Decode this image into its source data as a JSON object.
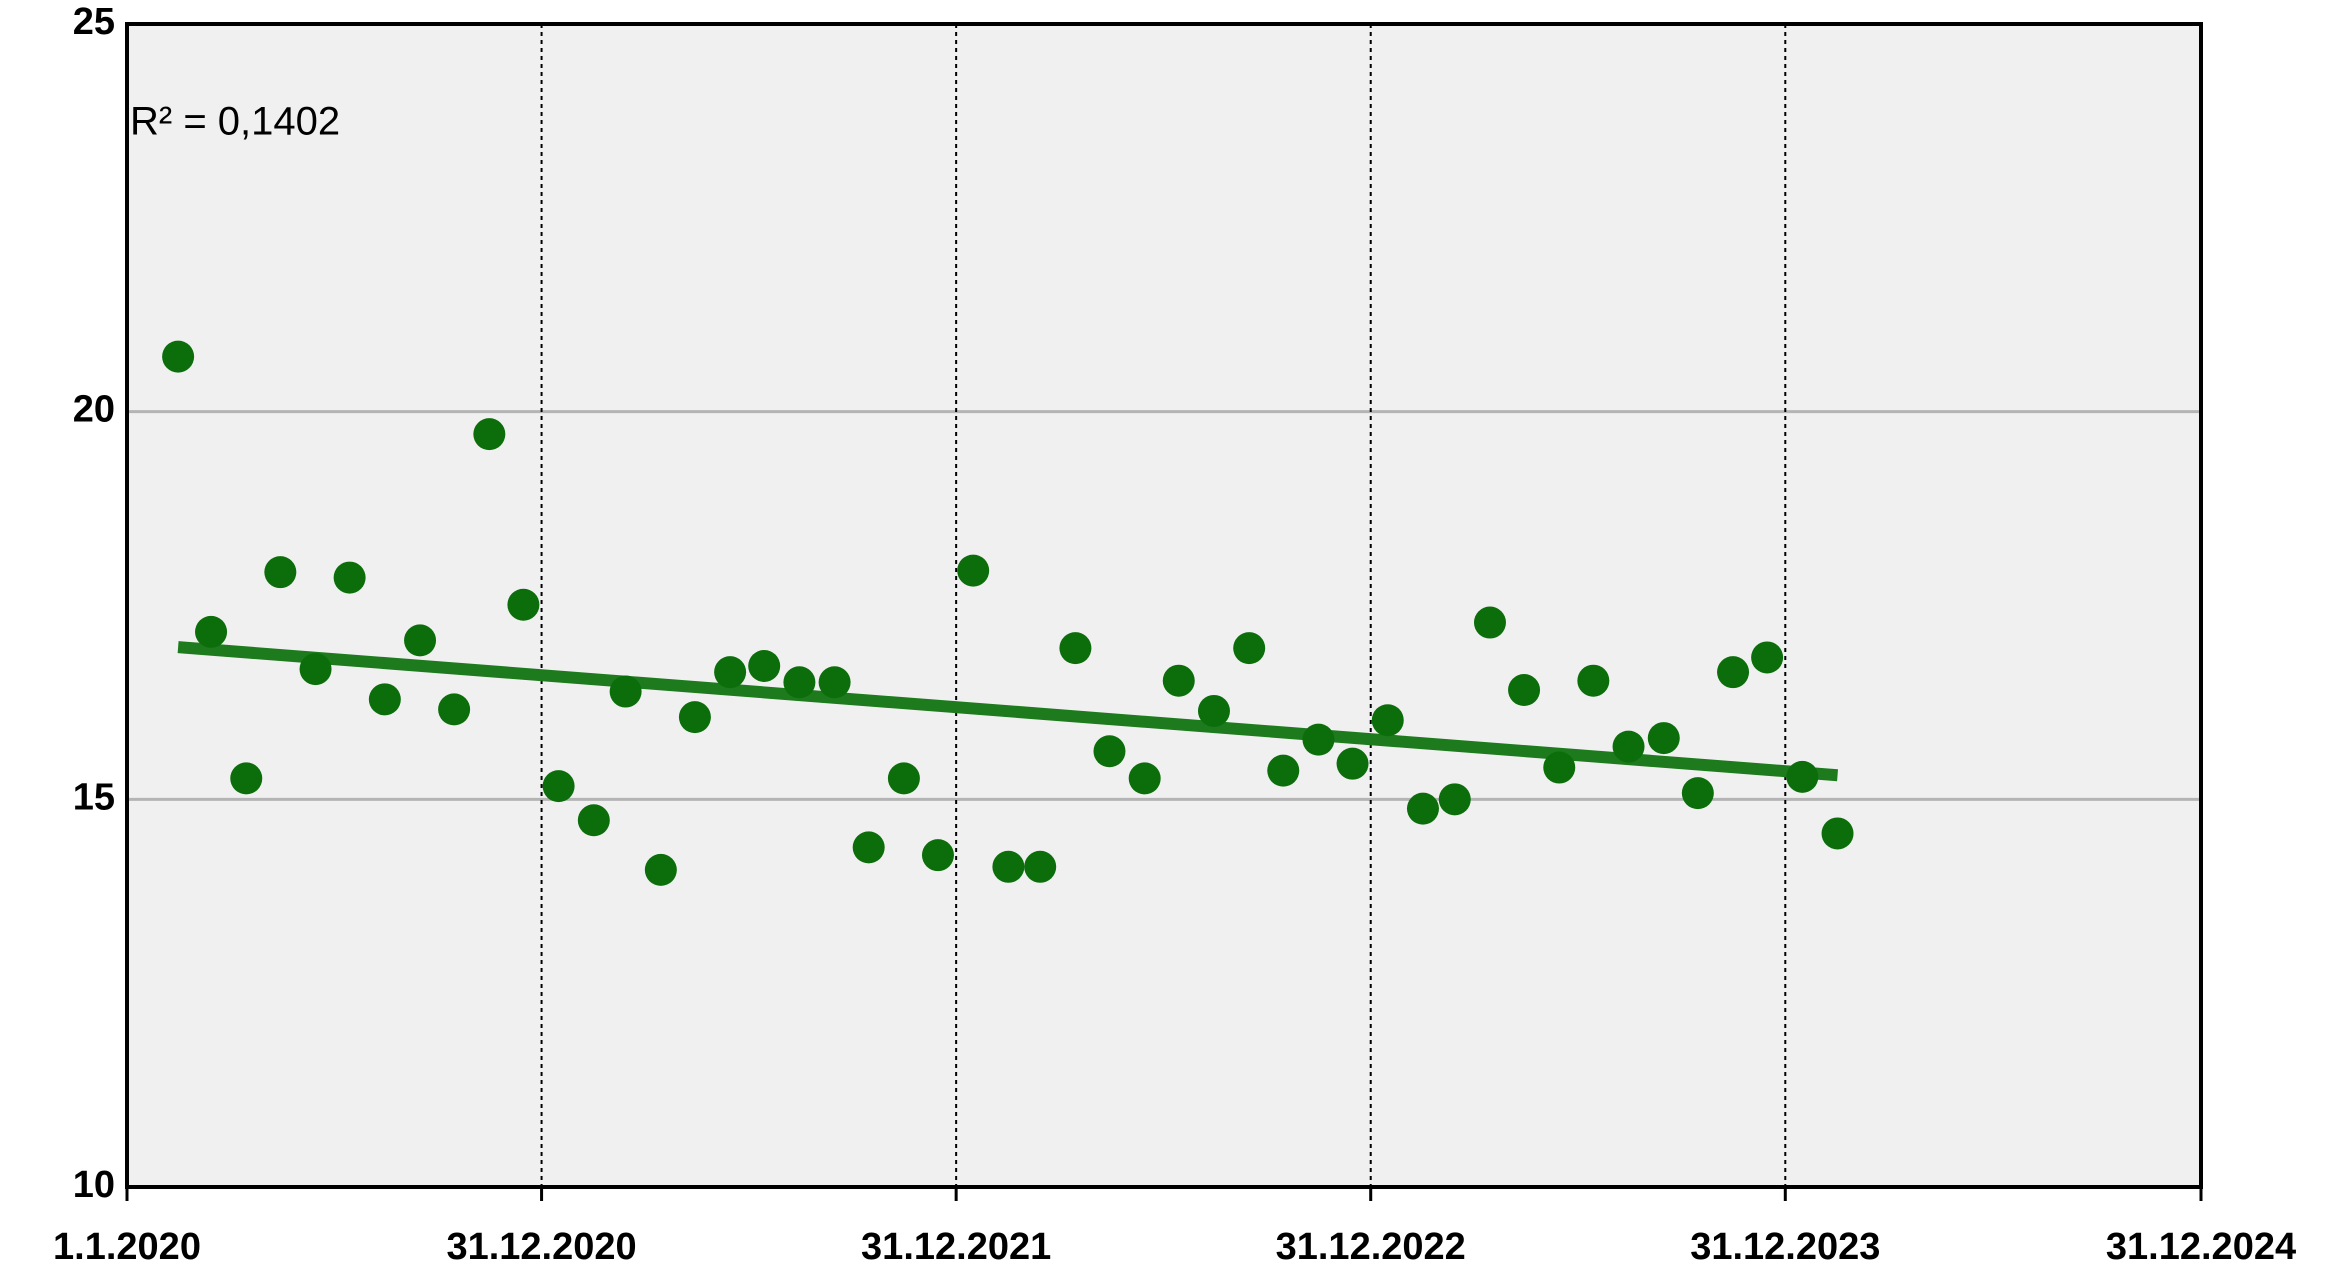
{
  "chart_data": {
    "type": "scatter",
    "annotation": "R² = 0,1402",
    "x": [
      "15.2.2020",
      "15.3.2020",
      "15.4.2020",
      "15.5.2020",
      "15.6.2020",
      "15.7.2020",
      "15.8.2020",
      "15.9.2020",
      "15.10.2020",
      "15.11.2020",
      "15.12.2020",
      "15.1.2021",
      "15.2.2021",
      "15.3.2021",
      "15.4.2021",
      "15.5.2021",
      "15.6.2021",
      "15.7.2021",
      "15.8.2021",
      "15.9.2021",
      "15.10.2021",
      "15.11.2021",
      "15.12.2021",
      "15.1.2022",
      "15.2.2022",
      "15.3.2022",
      "15.4.2022",
      "15.5.2022",
      "15.6.2022",
      "15.7.2022",
      "15.8.2022",
      "15.9.2022",
      "15.10.2022",
      "15.11.2022",
      "15.12.2022",
      "15.1.2023",
      "15.2.2023",
      "15.3.2023",
      "15.4.2023",
      "15.5.2023",
      "15.6.2023",
      "15.7.2023",
      "15.8.2023",
      "15.9.2023",
      "15.10.2023",
      "15.11.2023",
      "15.12.2023",
      "15.1.2024",
      "15.2.2024"
    ],
    "series": [
      {
        "color": "#0b6e0b",
        "values": [
          20.71,
          17.16,
          15.27,
          17.93,
          16.68,
          17.86,
          16.29,
          17.05,
          16.16,
          19.71,
          17.51,
          15.17,
          14.73,
          16.39,
          14.09,
          16.06,
          16.64,
          16.72,
          16.51,
          16.51,
          14.38,
          15.27,
          14.28,
          17.95,
          14.13,
          14.13,
          16.95,
          15.62,
          15.27,
          16.53,
          16.14,
          16.95,
          15.37,
          15.77,
          15.46,
          16.02,
          14.88,
          15.0,
          17.28,
          16.41,
          15.41,
          16.53,
          15.68,
          15.79,
          15.08,
          16.64,
          16.83,
          15.29,
          14.56
        ]
      }
    ],
    "trendline": true,
    "trendline_color": "#1d7a1d",
    "xlim": [
      "1.1.2020",
      "31.12.2024"
    ],
    "xticks": [
      "1.1.2020",
      "31.12.2020",
      "31.12.2021",
      "31.12.2022",
      "31.12.2023",
      "31.12.2024"
    ],
    "ylim": [
      10,
      25
    ],
    "yticks": [
      10,
      15,
      20,
      25
    ],
    "grid": true
  }
}
